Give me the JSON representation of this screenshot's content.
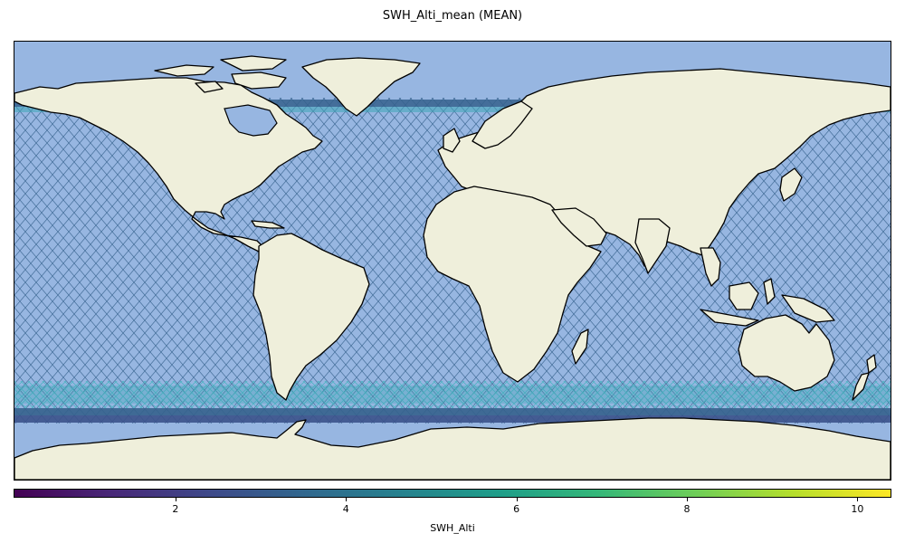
{
  "figure": {
    "title": "SWH_Alti_mean (MEAN)"
  },
  "map": {
    "projection": "PlateCarree",
    "extent": {
      "lon": [
        -180,
        180
      ],
      "lat": [
        -90,
        90
      ]
    },
    "colors": {
      "ocean": "#97b6e1",
      "land": "#efefdb",
      "coastline": "#000000",
      "track_mid": "#35628d",
      "track_high": "#3fa6b8",
      "track_edge": "#3b528b",
      "track_low": "#46327e"
    }
  },
  "colorbar": {
    "label": "SWH_Alti",
    "colormap": "viridis",
    "range": [
      0.1,
      10.4
    ],
    "ticks": [
      {
        "value": 2,
        "label": "2"
      },
      {
        "value": 4,
        "label": "4"
      },
      {
        "value": 6,
        "label": "6"
      },
      {
        "value": 8,
        "label": "8"
      },
      {
        "value": 10,
        "label": "10"
      }
    ],
    "stops": [
      "#440154",
      "#482878",
      "#3e4989",
      "#31688e",
      "#26828e",
      "#1f9e89",
      "#35b779",
      "#6ece58",
      "#b5de2b",
      "#fde725"
    ]
  }
}
